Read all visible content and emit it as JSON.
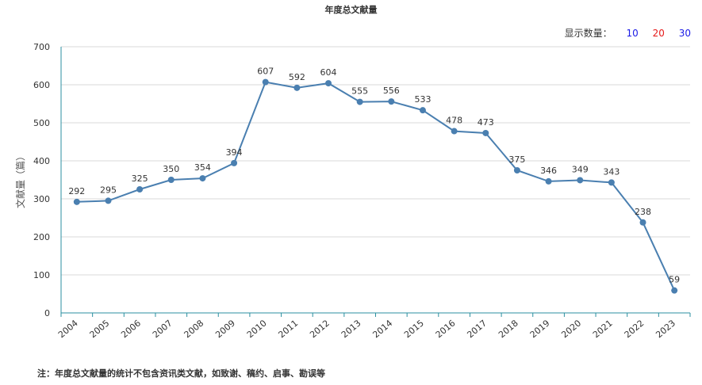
{
  "title": "年度总文献量",
  "count_selector": {
    "label": "显示数量：",
    "options": [
      "10",
      "20",
      "30"
    ]
  },
  "note": "注：年度总文献量的统计不包含资讯类文献，如致谢、稿约、启事、勘误等",
  "colors": {
    "line": "#4a7fb0",
    "axis": "#2b8fa0",
    "grid": "#d9d9d9"
  },
  "chart_data": {
    "type": "line",
    "x": [
      "2004",
      "2005",
      "2006",
      "2007",
      "2008",
      "2009",
      "2010",
      "2011",
      "2012",
      "2013",
      "2014",
      "2015",
      "2016",
      "2017",
      "2018",
      "2019",
      "2020",
      "2021",
      "2022",
      "2023"
    ],
    "values": [
      292,
      295,
      325,
      350,
      354,
      394,
      607,
      592,
      604,
      555,
      556,
      533,
      478,
      473,
      375,
      346,
      349,
      343,
      238,
      59
    ],
    "ylabel": "文献量（篇）",
    "ylim": [
      0,
      700
    ],
    "yticks": [
      0,
      100,
      200,
      300,
      400,
      500,
      600,
      700
    ],
    "grid": true
  }
}
